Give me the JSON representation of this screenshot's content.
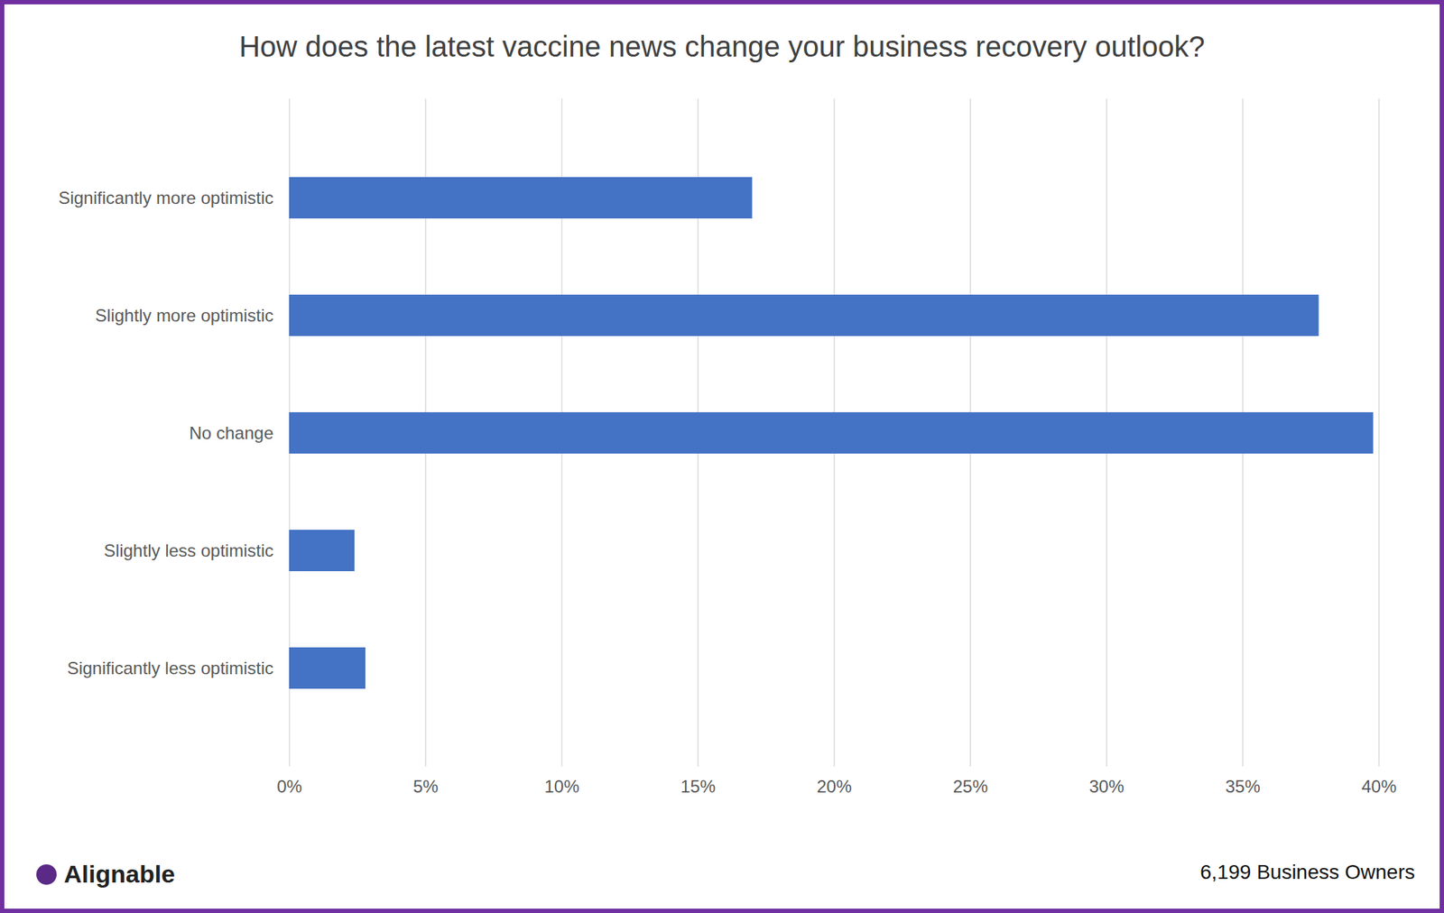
{
  "chart_data": {
    "type": "bar",
    "orientation": "horizontal",
    "title": "How does the latest vaccine news change your business recovery outlook?",
    "categories": [
      "Significantly more optimistic",
      "Slightly more optimistic",
      "No change",
      "Slightly less optimistic",
      "Significantly less optimistic"
    ],
    "values": [
      17.0,
      37.8,
      39.8,
      2.4,
      2.8
    ],
    "color": "#4472c4",
    "xlim": [
      0,
      40
    ],
    "xticks": [
      {
        "value": 0,
        "label": "0%"
      },
      {
        "value": 5,
        "label": "5%"
      },
      {
        "value": 10,
        "label": "10%"
      },
      {
        "value": 15,
        "label": "15%"
      },
      {
        "value": 20,
        "label": "20%"
      },
      {
        "value": 25,
        "label": "25%"
      },
      {
        "value": 30,
        "label": "30%"
      },
      {
        "value": 35,
        "label": "35%"
      },
      {
        "value": 40,
        "label": "40%"
      }
    ],
    "grid": true,
    "source": "Alignable",
    "caption": "6,199 Business Owners"
  }
}
